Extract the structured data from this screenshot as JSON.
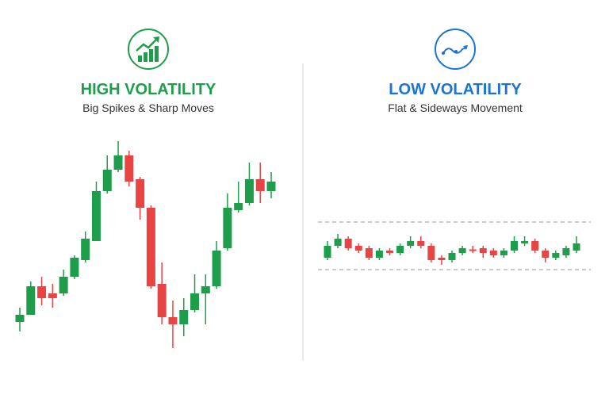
{
  "chart_data": [
    {
      "type": "candlestick",
      "title": "HIGH VOLATILITY",
      "subtitle": "Big Spikes & Sharp Moves",
      "title_color": "#1e9e4a",
      "up_color": "#1e9e4a",
      "down_color": "#e84444",
      "ylim": [
        0,
        100
      ],
      "open": [
        18,
        21,
        33,
        30,
        30,
        37,
        44,
        52,
        73,
        82,
        88,
        78,
        66,
        34,
        20,
        17,
        23,
        30,
        33,
        49,
        65,
        68,
        78,
        73
      ],
      "high": [
        24,
        35,
        37,
        34,
        40,
        46,
        56,
        77,
        88,
        94,
        90,
        79,
        67,
        43,
        27,
        28,
        38,
        38,
        52,
        72,
        77,
        85,
        85,
        81
      ],
      "low": [
        14,
        21,
        25,
        24,
        29,
        36,
        43,
        52,
        72,
        81,
        75,
        61,
        32,
        17,
        7,
        12,
        22,
        17,
        32,
        48,
        64,
        67,
        68,
        70
      ],
      "close": [
        21,
        33,
        28,
        28,
        37,
        45,
        53,
        73,
        82,
        88,
        77,
        66,
        33,
        20,
        17,
        23,
        30,
        33,
        48,
        66,
        68,
        78,
        73,
        77
      ]
    },
    {
      "type": "candlestick",
      "title": "LOW VOLATILITY",
      "subtitle": "Flat & Sideways Movement",
      "title_color": "#1a73d9",
      "up_color": "#1e9e4a",
      "down_color": "#e84444",
      "ylim": [
        0,
        100
      ],
      "band": [
        40,
        60
      ],
      "open": [
        45,
        50,
        53,
        50,
        49,
        45,
        48,
        47,
        50,
        52,
        50,
        45,
        44,
        47,
        48.5,
        49,
        48,
        46,
        48,
        51,
        52,
        48,
        45,
        46,
        48
      ],
      "high": [
        52,
        55,
        54,
        51,
        50,
        49,
        49,
        51,
        54,
        54,
        51,
        46,
        48,
        50,
        50,
        50,
        49,
        49,
        54,
        54,
        53,
        49,
        48,
        50,
        54
      ],
      "low": [
        44,
        49,
        48,
        47,
        44,
        44,
        46,
        46,
        49,
        49,
        43,
        42,
        43,
        46,
        47,
        45,
        45,
        45,
        47,
        50,
        47,
        43,
        44,
        45,
        47
      ],
      "close": [
        50,
        53,
        49,
        48,
        45,
        48,
        47,
        50,
        52,
        50,
        44,
        44,
        47,
        49,
        48,
        47,
        46,
        48,
        52,
        52,
        48,
        45,
        47,
        49,
        51
      ]
    }
  ]
}
